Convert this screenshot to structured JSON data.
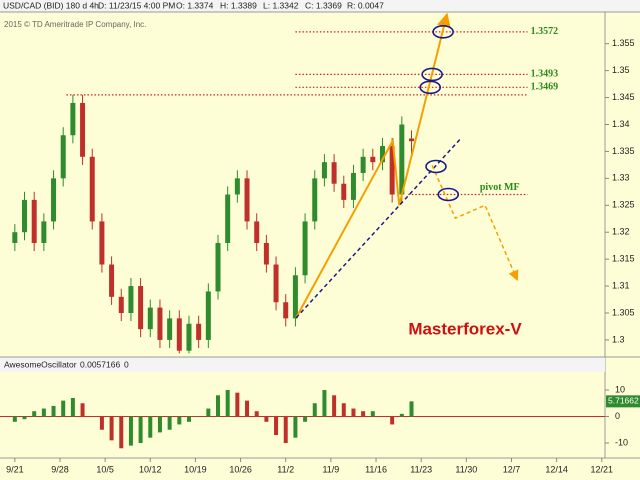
{
  "chart_data": {
    "type": "candlestick",
    "header": {
      "symbol": "USD/CAD (BID) 180 d 4h",
      "date": "D: 11/23/15 4:00 PM",
      "open": "O: 1.3374",
      "high": "H: 1.3389",
      "low": "L: 1.3342",
      "close": "C: 1.3369",
      "range": "R: 0.0047"
    },
    "copyright": "2015 © TD Ameritrade IP Company, Inc.",
    "watermark": "Masterforex-V",
    "up_color": "#2e8b2e",
    "down_color": "#c0302b",
    "x": [
      0,
      1.5,
      3,
      4.5,
      6,
      7.5,
      9,
      10.5,
      12,
      13.5,
      15,
      16.5,
      18,
      19.5,
      21,
      22.5,
      24,
      25.5,
      27,
      28.5,
      30,
      31.5,
      33,
      34.5,
      36,
      37.5,
      39,
      40.5,
      42,
      43.5,
      45,
      46.5,
      48,
      49.5,
      51,
      52.5,
      54,
      55.5,
      57,
      58.5,
      60,
      61.5
    ],
    "open": [
      1.318,
      1.32,
      1.326,
      1.318,
      1.322,
      1.33,
      1.338,
      1.344,
      1.334,
      1.322,
      1.314,
      1.308,
      1.305,
      1.31,
      1.302,
      1.306,
      1.3,
      1.304,
      1.298,
      1.303,
      1.3,
      1.309,
      1.318,
      1.327,
      1.33,
      1.322,
      1.318,
      1.314,
      1.307,
      1.304,
      1.312,
      1.322,
      1.33,
      1.333,
      1.329,
      1.326,
      1.331,
      1.334,
      1.333,
      1.336,
      1.327,
      1.3374
    ],
    "high": [
      1.3215,
      1.3275,
      1.3275,
      1.3235,
      1.3315,
      1.3395,
      1.3455,
      1.3455,
      1.3355,
      1.3235,
      1.3155,
      1.3095,
      1.3115,
      1.3115,
      1.3075,
      1.3075,
      1.3055,
      1.3055,
      1.3045,
      1.3045,
      1.3105,
      1.3195,
      1.3285,
      1.3315,
      1.3315,
      1.3235,
      1.3195,
      1.3155,
      1.3085,
      1.3135,
      1.3235,
      1.3315,
      1.3345,
      1.3345,
      1.3305,
      1.3325,
      1.3355,
      1.3355,
      1.3375,
      1.3375,
      1.3415,
      1.3389
    ],
    "low": [
      1.3165,
      1.3185,
      1.3165,
      1.3165,
      1.3205,
      1.3285,
      1.3365,
      1.3325,
      1.3205,
      1.3125,
      1.3065,
      1.3035,
      1.3035,
      1.3005,
      1.3005,
      1.2985,
      1.2985,
      1.2975,
      1.2975,
      1.2985,
      1.2985,
      1.3075,
      1.3165,
      1.3255,
      1.3205,
      1.3165,
      1.3125,
      1.3055,
      1.3025,
      1.3025,
      1.3105,
      1.3205,
      1.3285,
      1.3275,
      1.3245,
      1.3245,
      1.3295,
      1.3315,
      1.3315,
      1.3255,
      1.3255,
      1.3342
    ],
    "close": [
      1.32,
      1.326,
      1.318,
      1.322,
      1.33,
      1.338,
      1.344,
      1.334,
      1.322,
      1.314,
      1.308,
      1.305,
      1.31,
      1.302,
      1.306,
      1.3,
      1.304,
      1.298,
      1.303,
      1.3,
      1.309,
      1.318,
      1.327,
      1.33,
      1.322,
      1.318,
      1.314,
      1.307,
      1.304,
      1.312,
      1.322,
      1.33,
      1.333,
      1.329,
      1.326,
      1.331,
      1.334,
      1.333,
      1.336,
      1.327,
      1.34,
      1.3369
    ],
    "xlim": [
      -2.3,
      91.5
    ],
    "ylim": [
      1.2972,
      1.3607
    ],
    "yticks": [
      1.3,
      1.305,
      1.31,
      1.315,
      1.32,
      1.325,
      1.33,
      1.335,
      1.34,
      1.345,
      1.35,
      1.355
    ],
    "xticks": [
      {
        "value": 0,
        "label": "9/21"
      },
      {
        "value": 7,
        "label": "9/28"
      },
      {
        "value": 14,
        "label": "10/5"
      },
      {
        "value": 21,
        "label": "10/12"
      },
      {
        "value": 28,
        "label": "10/19"
      },
      {
        "value": 35,
        "label": "10/26"
      },
      {
        "value": 42,
        "label": "11/2"
      },
      {
        "value": 49,
        "label": "11/9"
      },
      {
        "value": 56,
        "label": "11/16"
      },
      {
        "value": 63,
        "label": "11/23"
      },
      {
        "value": 70,
        "label": "11/30"
      },
      {
        "value": 77,
        "label": "12/7"
      },
      {
        "value": 84,
        "label": "12/14"
      },
      {
        "value": 91,
        "label": "12/21"
      }
    ],
    "levels": [
      {
        "value": 1.3572,
        "label": "1.3572",
        "x": [
          43.5,
          79.5
        ]
      },
      {
        "value": 1.3493,
        "label": "1.3493",
        "x": [
          43.5,
          79.5
        ]
      },
      {
        "value": 1.3469,
        "label": "1.3469",
        "x": [
          43.5,
          79.5
        ]
      }
    ],
    "hline": {
      "value": 1.3455,
      "x": [
        8,
        79.5
      ]
    },
    "pivot": {
      "value": 1.327,
      "label": "pivot MF",
      "x": [
        61,
        79.5
      ]
    },
    "level_color": "#d02020",
    "label_color": "#2a8a1a",
    "trendlines": [
      {
        "color": "#f5a000",
        "dash": false,
        "arrow": true,
        "x": [
          43.6,
          58.6,
          59.6,
          67.0
        ],
        "y": [
          1.3041,
          1.337,
          1.325,
          1.3605
        ]
      },
      {
        "color": "#1a1a8c",
        "dash": true,
        "arrow": false,
        "x": [
          43.6,
          69.3
        ],
        "y": [
          1.3041,
          1.3376
        ]
      },
      {
        "color": "#f5a000",
        "dash": true,
        "arrow": true,
        "x": [
          64.7,
          68.3,
          72.9,
          77.9
        ],
        "y": [
          1.3324,
          1.3226,
          1.325,
          1.3111
        ]
      }
    ],
    "ellipses": {
      "color": "#1a1a8c",
      "x": [
        66.4,
        64.7,
        64.4,
        65.3,
        67.2
      ],
      "y": [
        1.3572,
        1.3493,
        1.3469,
        1.3322,
        1.327
      ]
    },
    "oscillator": {
      "name": "AwesomeOscillator",
      "header_value": "0.0057166",
      "header_extra": "0",
      "ylim": [
        -13.4,
        16.8
      ],
      "yticks": [
        -10,
        0,
        10
      ],
      "values": [
        -2,
        -1,
        2,
        3,
        4,
        6,
        7,
        5,
        0,
        -5,
        -9,
        -12,
        -11,
        -10,
        -8,
        -6,
        -5,
        -3,
        -2,
        0,
        3,
        8,
        10,
        9,
        6,
        2,
        -2,
        -7,
        -10,
        -8,
        -2,
        5,
        10,
        8,
        5,
        3,
        2,
        2,
        0,
        -3,
        1,
        5.71662
      ],
      "last_value_color": "#2e8b2e"
    }
  }
}
